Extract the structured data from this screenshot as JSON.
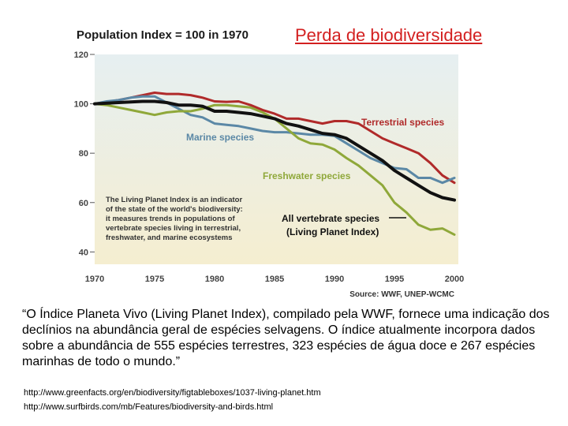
{
  "slide": {
    "title": "Perda de biodiversidade",
    "caption": "“O Índice Planeta Vivo (Living Planet Index), compilado pela WWF, fornece uma indicação dos declínios na abundância geral de espécies selvagens. O índice atualmente incorpora dados sobre a abundância de 555 espécies terrestres, 323 espécies de água doce e 267 espécies marinhas de todo o mundo.”",
    "links": [
      "http://www.greenfacts.org/en/biodiversity/figtableboxes/1037-living-planet.htm",
      "http://www.surfbirds.com/mb/Features/biodiversity-and-birds.html"
    ]
  },
  "chart_data": {
    "type": "line",
    "title": "Population Index = 100 in 1970",
    "source": "Source: WWF, UNEP-WCMC",
    "xlabel": "",
    "ylabel": "",
    "xlim": [
      1970,
      2000
    ],
    "ylim": [
      35,
      120
    ],
    "x_ticks": [
      1970,
      1975,
      1980,
      1985,
      1990,
      1995,
      2000
    ],
    "y_ticks": [
      40,
      60,
      80,
      100,
      120
    ],
    "grid": false,
    "note": [
      "The Living Planet Index is an indicator",
      "of the state of the world's biodiversity:",
      "it measures trends in populations of",
      "vertebrate species living in terrestrial,",
      "freshwater, and marine ecosystems"
    ],
    "colors": {
      "terrestrial": "#b02a2a",
      "marine": "#5b88a6",
      "freshwater": "#8fa83a",
      "all": "#111111",
      "background_top": "#e6eff1",
      "background_bottom": "#f5eed0"
    },
    "series": [
      {
        "key": "terrestrial",
        "name": "Terrestrial species",
        "x": [
          1970,
          1972,
          1973,
          1975,
          1976,
          1977,
          1978,
          1979,
          1980,
          1981,
          1982,
          1983,
          1984,
          1985,
          1986,
          1987,
          1988,
          1989,
          1990,
          1991,
          1992,
          1993,
          1994,
          1995,
          1996,
          1997,
          1998,
          1999,
          2000
        ],
        "values": [
          100,
          101.5,
          102.5,
          104.5,
          104,
          104,
          103.5,
          102.5,
          101,
          100.8,
          101,
          99.5,
          97.5,
          96,
          94,
          94,
          93,
          92,
          93,
          93,
          92,
          89,
          86,
          84,
          82,
          80,
          76,
          71,
          68
        ]
      },
      {
        "key": "marine",
        "name": "Marine species",
        "x": [
          1970,
          1971,
          1972,
          1973,
          1974,
          1975,
          1976,
          1977,
          1978,
          1979,
          1980,
          1981,
          1982,
          1983,
          1984,
          1985,
          1986,
          1987,
          1988,
          1989,
          1990,
          1991,
          1992,
          1993,
          1994,
          1995,
          1996,
          1997,
          1998,
          1999,
          2000
        ],
        "values": [
          100,
          101,
          101.5,
          102.5,
          103,
          103,
          100.5,
          98,
          95.5,
          94.5,
          92,
          91.5,
          91,
          90,
          89,
          88.5,
          88.5,
          88,
          87.5,
          87.5,
          87,
          84,
          81,
          78,
          76,
          74,
          73.5,
          70,
          70,
          68,
          70
        ]
      },
      {
        "key": "freshwater",
        "name": "Freshwater species",
        "x": [
          1970,
          1971,
          1972,
          1973,
          1974,
          1975,
          1976,
          1977,
          1978,
          1979,
          1980,
          1981,
          1982,
          1983,
          1984,
          1985,
          1986,
          1987,
          1988,
          1989,
          1990,
          1991,
          1992,
          1993,
          1994,
          1995,
          1996,
          1997,
          1998,
          1999,
          2000
        ],
        "values": [
          100,
          99.5,
          98.5,
          97.5,
          96.5,
          95.5,
          96.5,
          97,
          97,
          98,
          99.5,
          99.5,
          99,
          98.5,
          96.5,
          94,
          90,
          86,
          84,
          83.5,
          81.5,
          78,
          75,
          71,
          67,
          60,
          56,
          51,
          49,
          49.5,
          47
        ]
      },
      {
        "key": "all",
        "name": "All vertebrate species (Living Planet Index)",
        "x": [
          1970,
          1972,
          1974,
          1975,
          1976,
          1977,
          1978,
          1979,
          1980,
          1981,
          1982,
          1983,
          1984,
          1985,
          1986,
          1987,
          1988,
          1989,
          1990,
          1991,
          1992,
          1993,
          1994,
          1995,
          1996,
          1997,
          1998,
          1999,
          2000
        ],
        "values": [
          100,
          100.5,
          101,
          101,
          100.5,
          99.5,
          99.5,
          99,
          97,
          97,
          96.5,
          96,
          95,
          94,
          92,
          91,
          89.5,
          88,
          87.5,
          86,
          83,
          80,
          77,
          73,
          70,
          67,
          64,
          62,
          61
        ]
      }
    ],
    "labels": {
      "terrestrial": "Terrestrial species",
      "marine": "Marine species",
      "freshwater": "Freshwater species",
      "all_line1": "All vertebrate species",
      "all_line2": "(Living Planet Index)"
    }
  }
}
